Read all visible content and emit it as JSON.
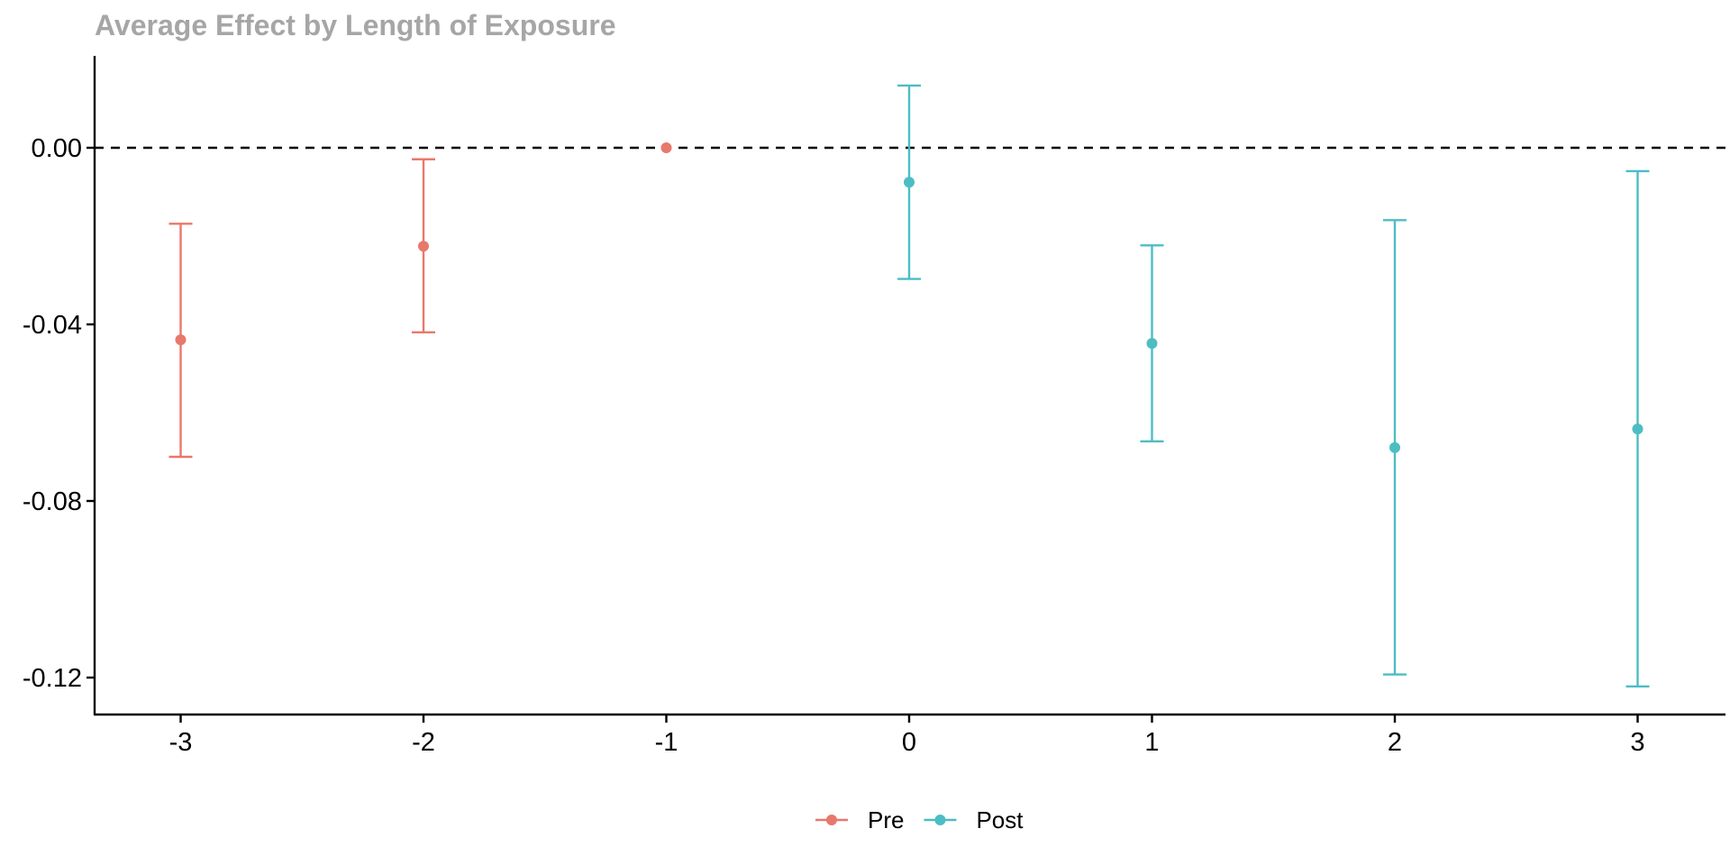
{
  "chart_data": {
    "type": "scatter",
    "title": "Average Effect by Length of Exposure",
    "xlabel": "",
    "ylabel": "",
    "x_ticks": [
      "-3",
      "-2",
      "-1",
      "0",
      "1",
      "2",
      "3"
    ],
    "y_ticks": [
      "0.00",
      "-0.04",
      "-0.08",
      "-0.12"
    ],
    "x_range": [
      -3.35,
      3.35
    ],
    "y_range": [
      -0.1285,
      0.0205
    ],
    "reference_line": {
      "y": 0,
      "style": "dashed"
    },
    "grid": false,
    "legend_position": "bottom",
    "series": [
      {
        "name": "Pre",
        "color": "#E8786C",
        "points": [
          {
            "x": -3,
            "y": -0.0435,
            "lower": -0.07,
            "upper": -0.0172
          },
          {
            "x": -2,
            "y": -0.0223,
            "lower": -0.0418,
            "upper": -0.0026
          },
          {
            "x": -1,
            "y": 0.0,
            "lower": null,
            "upper": null
          }
        ]
      },
      {
        "name": "Post",
        "color": "#4DBDC4",
        "points": [
          {
            "x": 0,
            "y": -0.0078,
            "lower": -0.0297,
            "upper": 0.0141
          },
          {
            "x": 1,
            "y": -0.0443,
            "lower": -0.0665,
            "upper": -0.0221
          },
          {
            "x": 2,
            "y": -0.0679,
            "lower": -0.1193,
            "upper": -0.0164
          },
          {
            "x": 3,
            "y": -0.0637,
            "lower": -0.122,
            "upper": -0.0053
          }
        ]
      }
    ]
  }
}
